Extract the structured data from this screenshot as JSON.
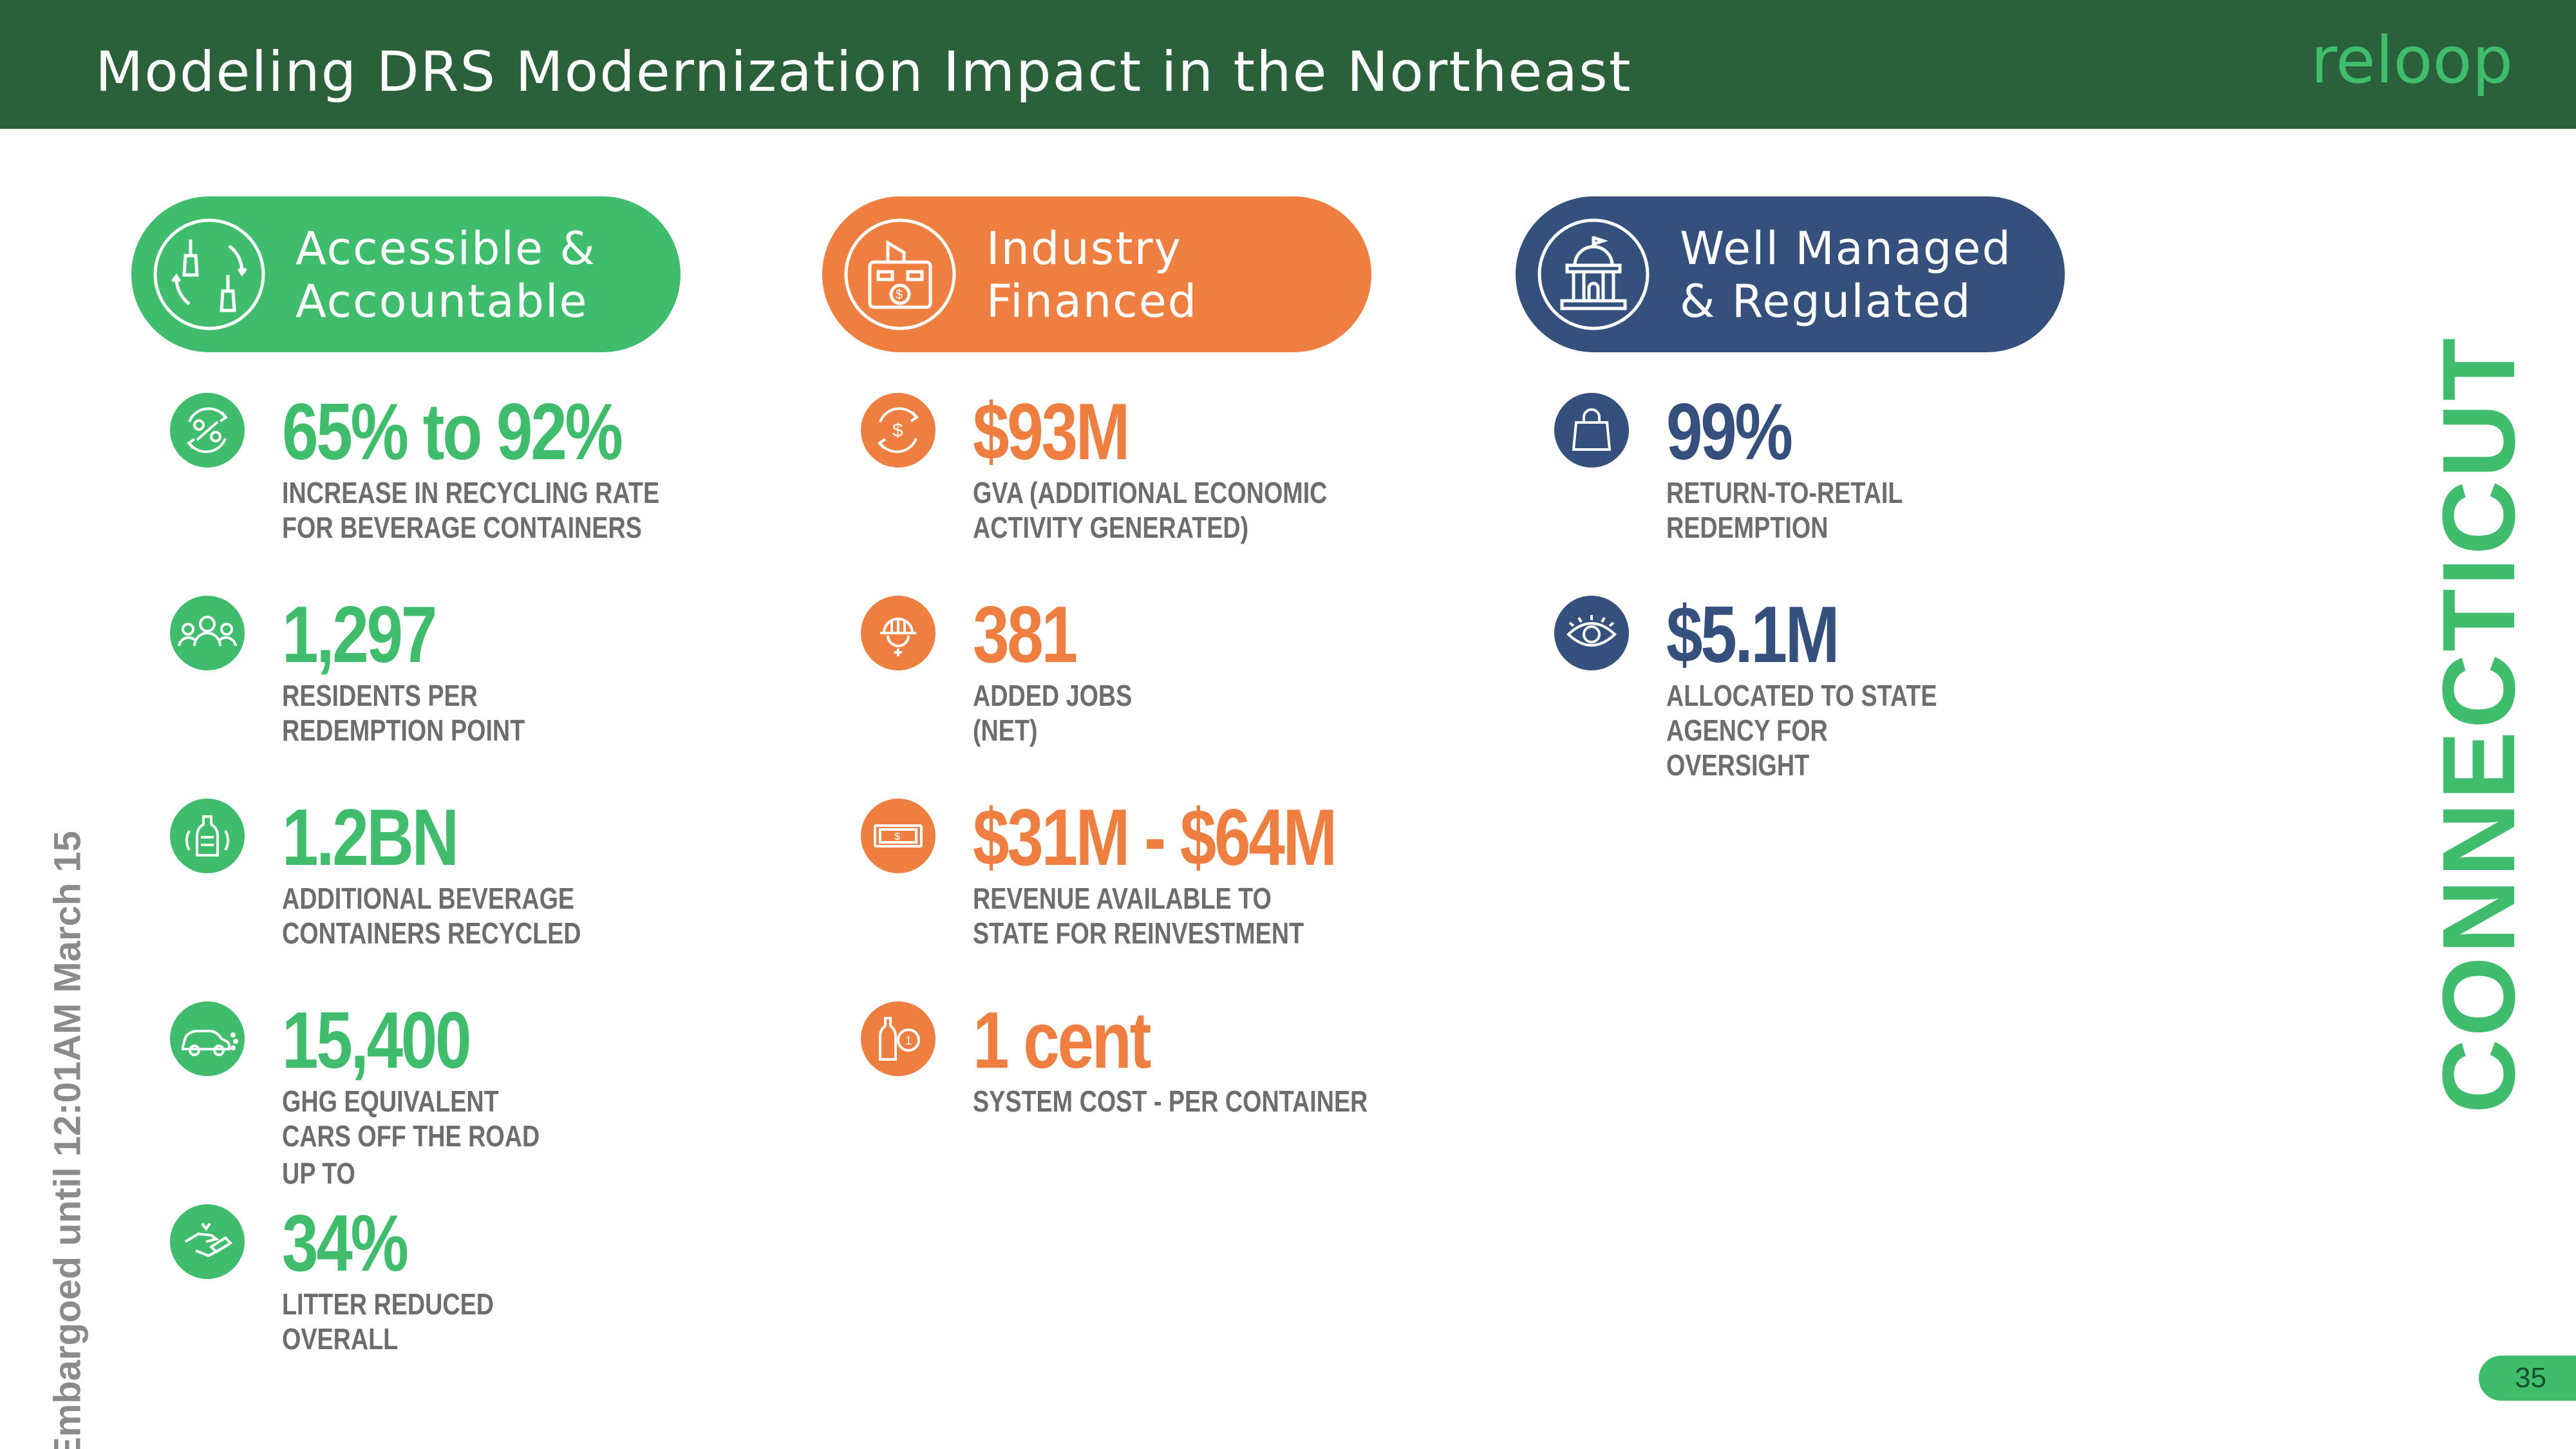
{
  "header": {
    "title": "Modeling DRS Modernization Impact in the Northeast",
    "logo_text": "reloop"
  },
  "state": "CONNECTICUT",
  "embargo": "Embargoed until 12:01AM March 15",
  "page_number": "35",
  "colors": {
    "header_bg": "#2a613b",
    "green": "#3fbd6d",
    "orange": "#ee7f41",
    "blue": "#36507e",
    "text_gray": "#6d6d6d"
  },
  "columns": [
    {
      "title": "Accessible &\nAccountable",
      "icon": "bottles-recycle-icon",
      "stats": [
        {
          "icon": "recycling-rate-icon",
          "value": "65% to 92%",
          "desc": "INCREASE IN RECYCLING RATE\nFOR BEVERAGE CONTAINERS"
        },
        {
          "icon": "residents-icon",
          "value": "1,297",
          "desc": "RESIDENTS PER\nREDEMPTION POINT"
        },
        {
          "icon": "bottle-icon",
          "value": "1.2BN",
          "desc": "ADDITIONAL BEVERAGE\nCONTAINERS RECYCLED"
        },
        {
          "icon": "car-icon",
          "value": "15,400",
          "desc": "GHG EQUIVALENT\nCARS OFF THE ROAD"
        },
        {
          "icon": "litter-icon",
          "prefix": "UP TO",
          "value": "34%",
          "desc": "LITTER REDUCED\nOVERALL"
        }
      ]
    },
    {
      "title": "Industry\nFinanced",
      "icon": "industry-money-icon",
      "stats": [
        {
          "icon": "economic-cycle-icon",
          "value": "$93M",
          "desc": "GVA (ADDITIONAL ECONOMIC\nACTIVITY GENERATED)"
        },
        {
          "icon": "worker-icon",
          "value": "381",
          "desc": "ADDED JOBS\n(NET)"
        },
        {
          "icon": "banknote-icon",
          "value": "$31M - $64M",
          "desc": "REVENUE AVAILABLE TO\nSTATE FOR REINVESTMENT"
        },
        {
          "icon": "bottle-coin-icon",
          "value": "1 cent",
          "desc": "SYSTEM COST - PER CONTAINER"
        }
      ]
    },
    {
      "title": "Well Managed\n& Regulated",
      "icon": "government-building-icon",
      "stats": [
        {
          "icon": "shopping-bag-icon",
          "value": "99%",
          "desc": "RETURN-TO-RETAIL\nREDEMPTION"
        },
        {
          "icon": "eye-icon",
          "value": "$5.1M",
          "desc": "ALLOCATED TO STATE\nAGENCY FOR\nOVERSIGHT"
        }
      ]
    }
  ]
}
